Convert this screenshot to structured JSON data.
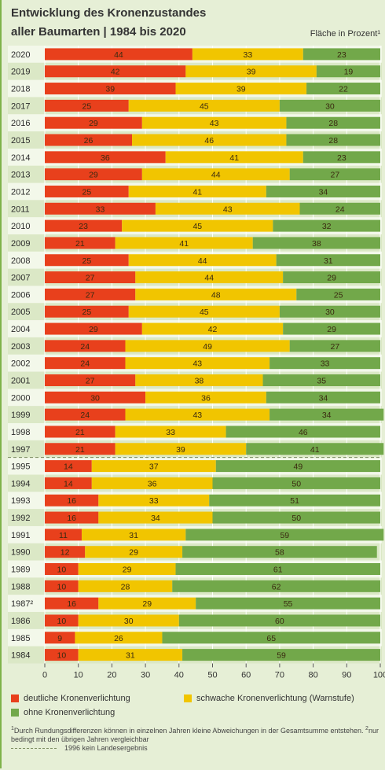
{
  "title_line1": "Entwicklung des Kronenzustandes",
  "title_line2": "aller Baumarten | 1984 bis 2020",
  "unit_label": "Fläche in Prozent¹",
  "colors": {
    "deutliche": "#e8401c",
    "schwache": "#f1c500",
    "ohne": "#72a84a",
    "row_even": "#f3f8ea",
    "row_odd": "#dbe8c6",
    "grid": "#ffffff"
  },
  "legend": {
    "deutliche": "deutliche Kronenverlichtung",
    "schwache": "schwache Kronenverlichtung (Warnstufe)",
    "ohne": "ohne Kronenverlichtung"
  },
  "footnote1": "Durch Rundungsdifferenzen können in einzelnen Jahren kleine Abweichungen in der Gesamtsumme entstehen.",
  "footnote2": "nur bedingt mit den übrigen Jahren vergleichbar",
  "dash_note": "1996 kein Landesergebnis",
  "chart_data": {
    "type": "bar",
    "orientation": "horizontal",
    "stacked": true,
    "xlim": [
      0,
      100
    ],
    "xticks": [
      0,
      10,
      20,
      30,
      40,
      50,
      60,
      70,
      80,
      90,
      100
    ],
    "categories": [
      "2020",
      "2019",
      "2018",
      "2017",
      "2016",
      "2015",
      "2014",
      "2013",
      "2012",
      "2011",
      "2010",
      "2009",
      "2008",
      "2007",
      "2006",
      "2005",
      "2004",
      "2003",
      "2002",
      "2001",
      "2000",
      "1999",
      "1998",
      "1997",
      "1995",
      "1994",
      "1993",
      "1992",
      "1991",
      "1990",
      "1989",
      "1988",
      "1987²",
      "1986",
      "1985",
      "1984"
    ],
    "series": [
      {
        "name": "deutliche Kronenverlichtung",
        "key": "deutliche",
        "values": [
          44,
          42,
          39,
          25,
          29,
          26,
          36,
          29,
          25,
          33,
          23,
          21,
          25,
          27,
          27,
          25,
          29,
          24,
          24,
          27,
          30,
          24,
          21,
          21,
          14,
          14,
          16,
          16,
          11,
          12,
          10,
          10,
          16,
          10,
          9,
          10
        ]
      },
      {
        "name": "schwache Kronenverlichtung (Warnstufe)",
        "key": "schwache",
        "values": [
          33,
          39,
          39,
          45,
          43,
          46,
          41,
          44,
          41,
          43,
          45,
          41,
          44,
          44,
          48,
          45,
          42,
          49,
          43,
          38,
          36,
          43,
          33,
          39,
          37,
          36,
          33,
          34,
          31,
          29,
          29,
          28,
          29,
          30,
          26,
          31
        ]
      },
      {
        "name": "ohne Kronenverlichtung",
        "key": "ohne",
        "values": [
          23,
          19,
          22,
          30,
          28,
          28,
          23,
          27,
          34,
          24,
          32,
          38,
          31,
          29,
          25,
          30,
          29,
          27,
          33,
          35,
          34,
          34,
          46,
          41,
          49,
          50,
          51,
          50,
          59,
          58,
          61,
          62,
          55,
          60,
          65,
          59
        ]
      }
    ],
    "dashed_separator_after": "1997"
  }
}
